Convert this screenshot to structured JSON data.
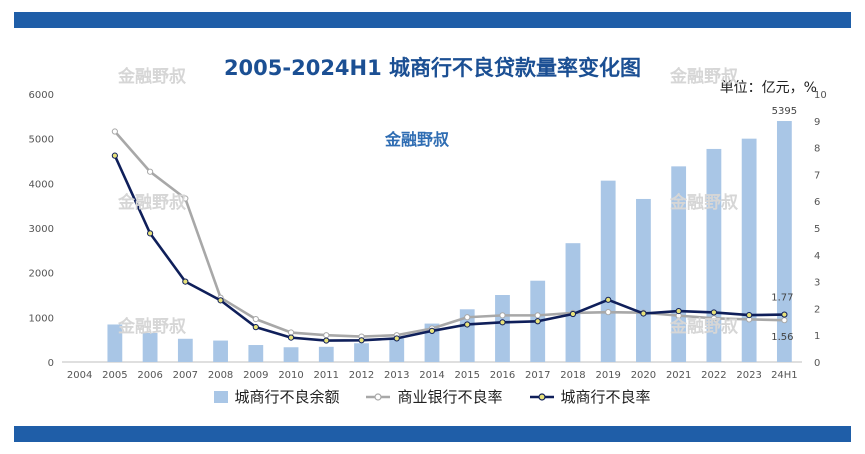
{
  "title": "2005-2024H1 城商行不良贷款量率变化图",
  "unit_label": "单位：亿元，%",
  "watermark": "金融野叔",
  "colors": {
    "bar": "#a9c6e6",
    "city_rate_line": "#0f1f5a",
    "city_rate_marker": "#e8e27a",
    "commercial_rate_line": "#a8a8a8",
    "band": "#1f5ea8",
    "title": "#1b4f93"
  },
  "chart_data": {
    "type": "bar",
    "categories": [
      "2004",
      "2005",
      "2006",
      "2007",
      "2008",
      "2009",
      "2010",
      "2011",
      "2012",
      "2013",
      "2014",
      "2015",
      "2016",
      "2017",
      "2018",
      "2019",
      "2020",
      "2021",
      "2022",
      "2023",
      "24H1"
    ],
    "y_left_ticks": [
      "0",
      "1000",
      "2000",
      "3000",
      "4000",
      "5000",
      "6000"
    ],
    "y_right_ticks": [
      "0",
      "1",
      "2",
      "3",
      "4",
      "5",
      "6",
      "7",
      "8",
      "9",
      "10"
    ],
    "y_left_lim": [
      0,
      6000
    ],
    "y_right_lim": [
      0,
      10
    ],
    "series": [
      {
        "name": "城商行不良余额",
        "type": "bar",
        "axis": "left",
        "values": [
          null,
          840,
          650,
          520,
          480,
          380,
          330,
          340,
          420,
          530,
          860,
          1180,
          1500,
          1820,
          2660,
          4060,
          3650,
          4380,
          4770,
          5000,
          5395
        ]
      },
      {
        "name": "商业银行不良率",
        "type": "line",
        "axis": "right",
        "values": [
          null,
          8.6,
          7.1,
          6.1,
          2.4,
          1.6,
          1.1,
          1.0,
          0.95,
          1.0,
          1.25,
          1.67,
          1.74,
          1.74,
          1.83,
          1.86,
          1.84,
          1.73,
          1.63,
          1.59,
          1.56
        ]
      },
      {
        "name": "城商行不良率",
        "type": "line",
        "axis": "right",
        "values": [
          null,
          7.7,
          4.8,
          3.0,
          2.3,
          1.3,
          0.91,
          0.8,
          0.81,
          0.88,
          1.16,
          1.4,
          1.48,
          1.52,
          1.79,
          2.32,
          1.81,
          1.9,
          1.85,
          1.75,
          1.77
        ]
      }
    ],
    "data_labels": {
      "bar_last": "5395",
      "city_rate_last": "1.77",
      "commercial_rate_last": "1.56"
    },
    "legend_position": "bottom",
    "grid": false
  }
}
